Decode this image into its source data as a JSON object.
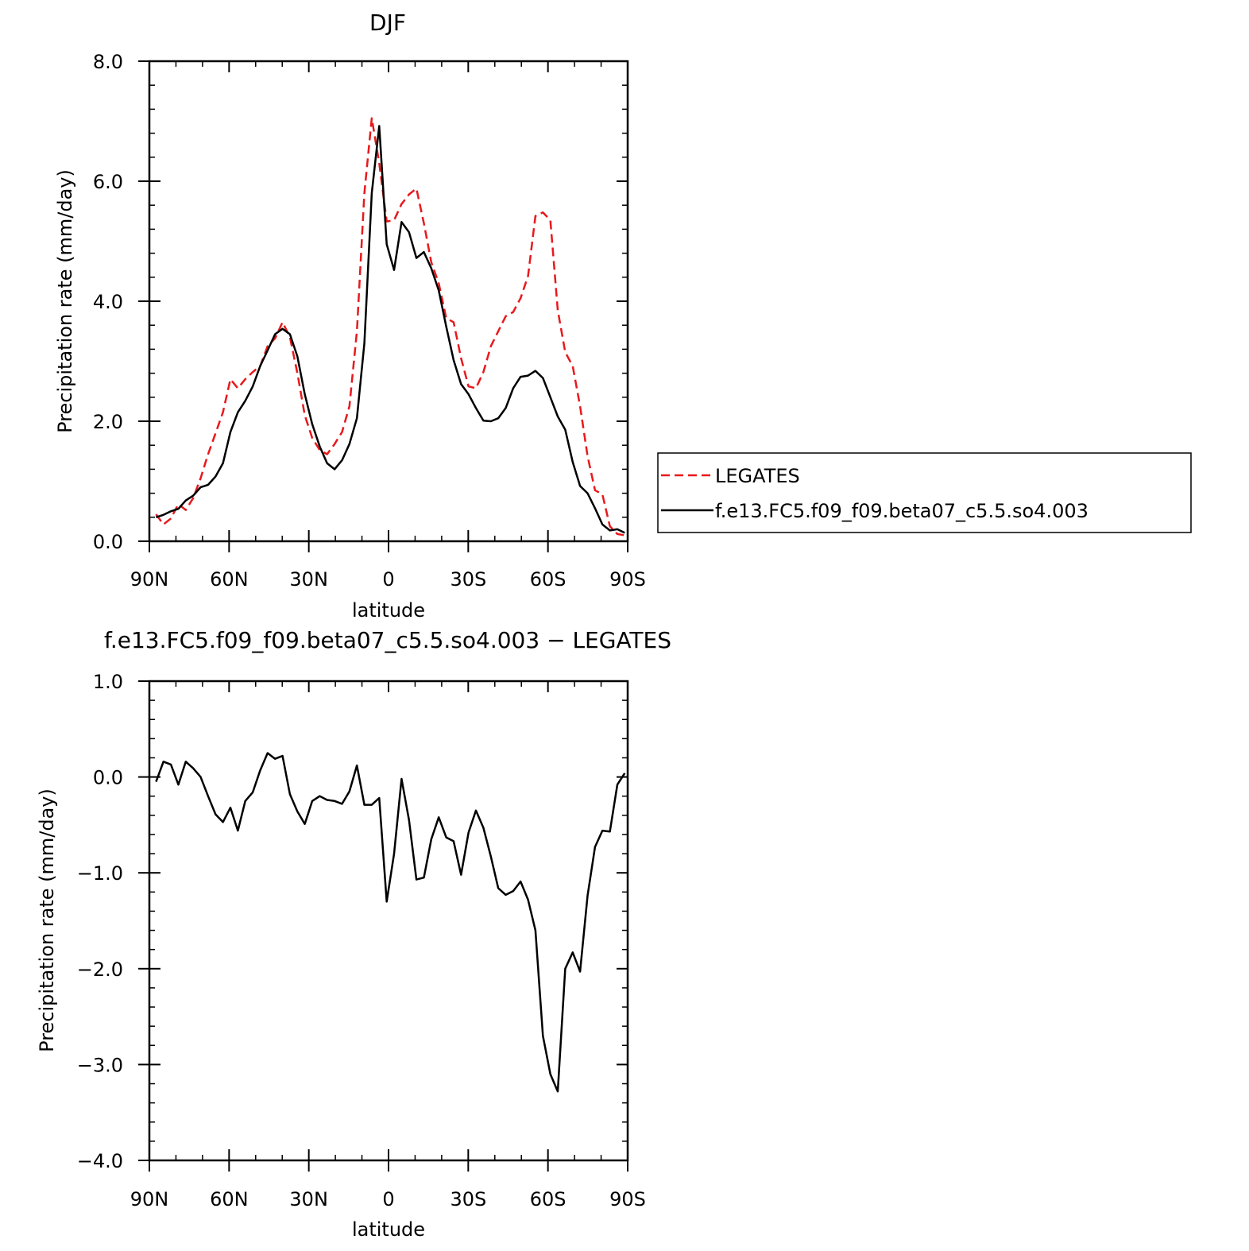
{
  "chart_data": [
    {
      "type": "line",
      "title": "DJF",
      "xlabel": "latitude",
      "ylabel": "Precipitation rate (mm/day)",
      "xlim": [
        90,
        -90
      ],
      "ylim": [
        0,
        8
      ],
      "x_ticks": [
        {
          "value": 90,
          "label": "90N"
        },
        {
          "value": 60,
          "label": "60N"
        },
        {
          "value": 30,
          "label": "30N"
        },
        {
          "value": 0,
          "label": "0"
        },
        {
          "value": -30,
          "label": "30S"
        },
        {
          "value": -60,
          "label": "60S"
        },
        {
          "value": -90,
          "label": "90S"
        }
      ],
      "y_ticks": [
        {
          "value": 0,
          "label": "0.0"
        },
        {
          "value": 2,
          "label": "2.0"
        },
        {
          "value": 4,
          "label": "4.0"
        },
        {
          "value": 6,
          "label": "6.0"
        },
        {
          "value": 8,
          "label": "8.0"
        }
      ],
      "legend_position": "right",
      "x": [
        87.5,
        84.7,
        81.9,
        79.1,
        76.3,
        73.5,
        70.7,
        67.9,
        65.1,
        62.3,
        59.5,
        56.7,
        53.9,
        51.1,
        48.3,
        45.5,
        42.7,
        39.9,
        37.1,
        34.3,
        31.5,
        28.7,
        25.9,
        23.1,
        20.3,
        17.5,
        14.7,
        11.9,
        9.1,
        6.3,
        3.5,
        0.7,
        -2.1,
        -4.9,
        -7.7,
        -10.5,
        -13.3,
        -16.1,
        -18.9,
        -21.7,
        -24.5,
        -27.3,
        -30.1,
        -32.9,
        -35.7,
        -38.5,
        -41.3,
        -44.1,
        -46.9,
        -49.7,
        -52.5,
        -55.3,
        -58.1,
        -60.9,
        -63.7,
        -66.5,
        -69.3,
        -72.1,
        -74.9,
        -77.7,
        -80.5,
        -83.3,
        -86.1,
        -88.9
      ],
      "series": [
        {
          "name": "LEGATES",
          "color": "#e8191c",
          "dash": true,
          "values": [
            0.45,
            0.28,
            0.38,
            0.62,
            0.52,
            0.72,
            1.05,
            1.45,
            1.8,
            2.15,
            2.7,
            2.55,
            2.7,
            2.82,
            2.92,
            3.25,
            3.38,
            3.65,
            3.4,
            2.8,
            2.1,
            1.72,
            1.52,
            1.45,
            1.62,
            1.82,
            2.25,
            3.5,
            5.8,
            7.05,
            6.3,
            5.33,
            5.35,
            5.62,
            5.78,
            5.88,
            5.3,
            4.65,
            4.3,
            3.72,
            3.65,
            3.05,
            2.58,
            2.55,
            2.82,
            3.25,
            3.5,
            3.75,
            3.82,
            4.05,
            4.42,
            5.42,
            5.48,
            5.35,
            3.85,
            3.15,
            2.92,
            2.25,
            1.42,
            0.85,
            0.78,
            0.25,
            0.12,
            0.1
          ]
        },
        {
          "name": "f.e13.FC5.f09_f09.beta07_c5.5.so4.003",
          "color": "#000000",
          "dash": false,
          "values": [
            0.4,
            0.44,
            0.5,
            0.54,
            0.68,
            0.76,
            0.9,
            0.94,
            1.08,
            1.3,
            1.82,
            2.15,
            2.34,
            2.58,
            2.92,
            3.18,
            3.45,
            3.54,
            3.45,
            3.08,
            2.45,
            1.95,
            1.58,
            1.3,
            1.2,
            1.35,
            1.62,
            2.05,
            3.3,
            5.8,
            6.92,
            4.95,
            4.52,
            5.32,
            5.15,
            4.72,
            4.82,
            4.55,
            4.18,
            3.58,
            3.02,
            2.62,
            2.45,
            2.22,
            2.01,
            2.0,
            2.05,
            2.22,
            2.55,
            2.74,
            2.76,
            2.84,
            2.72,
            2.4,
            2.08,
            1.86,
            1.32,
            0.92,
            0.8,
            0.55,
            0.28,
            0.18,
            0.2,
            0.14
          ]
        }
      ]
    },
    {
      "type": "line",
      "title": "f.e13.FC5.f09_f09.beta07_c5.5.so4.003 − LEGATES",
      "xlabel": "latitude",
      "ylabel": "Precipitation rate (mm/day)",
      "xlim": [
        90,
        -90
      ],
      "ylim": [
        -4,
        1
      ],
      "x_ticks": [
        {
          "value": 90,
          "label": "90N"
        },
        {
          "value": 60,
          "label": "60N"
        },
        {
          "value": 30,
          "label": "30N"
        },
        {
          "value": 0,
          "label": "0"
        },
        {
          "value": -30,
          "label": "30S"
        },
        {
          "value": -60,
          "label": "60S"
        },
        {
          "value": -90,
          "label": "90S"
        }
      ],
      "y_ticks": [
        {
          "value": -4,
          "label": "−4.0"
        },
        {
          "value": -3,
          "label": "−3.0"
        },
        {
          "value": -2,
          "label": "−2.0"
        },
        {
          "value": -1,
          "label": "−1.0"
        },
        {
          "value": 0,
          "label": "0.0"
        },
        {
          "value": 1,
          "label": "1.0"
        }
      ],
      "x": [
        87.5,
        84.7,
        81.9,
        79.1,
        76.3,
        73.5,
        70.7,
        67.9,
        65.1,
        62.3,
        59.5,
        56.7,
        53.9,
        51.1,
        48.3,
        45.5,
        42.7,
        39.9,
        37.1,
        34.3,
        31.5,
        28.7,
        25.9,
        23.1,
        20.3,
        17.5,
        14.7,
        11.9,
        9.1,
        6.3,
        3.5,
        0.7,
        -2.1,
        -4.9,
        -7.7,
        -10.5,
        -13.3,
        -16.1,
        -18.9,
        -21.7,
        -24.5,
        -27.3,
        -30.1,
        -32.9,
        -35.7,
        -38.5,
        -41.3,
        -44.1,
        -46.9,
        -49.7,
        -52.5,
        -55.3,
        -58.1,
        -60.9,
        -63.7,
        -66.5,
        -69.3,
        -72.1,
        -74.9,
        -77.7,
        -80.5,
        -83.3,
        -86.1,
        -88.9
      ],
      "series": [
        {
          "name": "",
          "color": "#000000",
          "dash": false,
          "values": [
            -0.05,
            0.16,
            0.13,
            -0.08,
            0.16,
            0.09,
            0.0,
            -0.2,
            -0.39,
            -0.47,
            -0.32,
            -0.56,
            -0.25,
            -0.16,
            0.07,
            0.25,
            0.19,
            0.22,
            -0.18,
            -0.36,
            -0.49,
            -0.25,
            -0.2,
            -0.24,
            -0.25,
            -0.28,
            -0.15,
            0.12,
            -0.29,
            -0.29,
            -0.22,
            -1.3,
            -0.8,
            -0.02,
            -0.45,
            -1.07,
            -1.05,
            -0.65,
            -0.42,
            -0.63,
            -0.67,
            -1.02,
            -0.58,
            -0.35,
            -0.53,
            -0.83,
            -1.16,
            -1.23,
            -1.19,
            -1.09,
            -1.28,
            -1.6,
            -2.7,
            -3.1,
            -3.28,
            -2.0,
            -1.83,
            -2.03,
            -1.24,
            -0.73,
            -0.56,
            -0.57,
            -0.08,
            0.04
          ]
        }
      ]
    }
  ]
}
